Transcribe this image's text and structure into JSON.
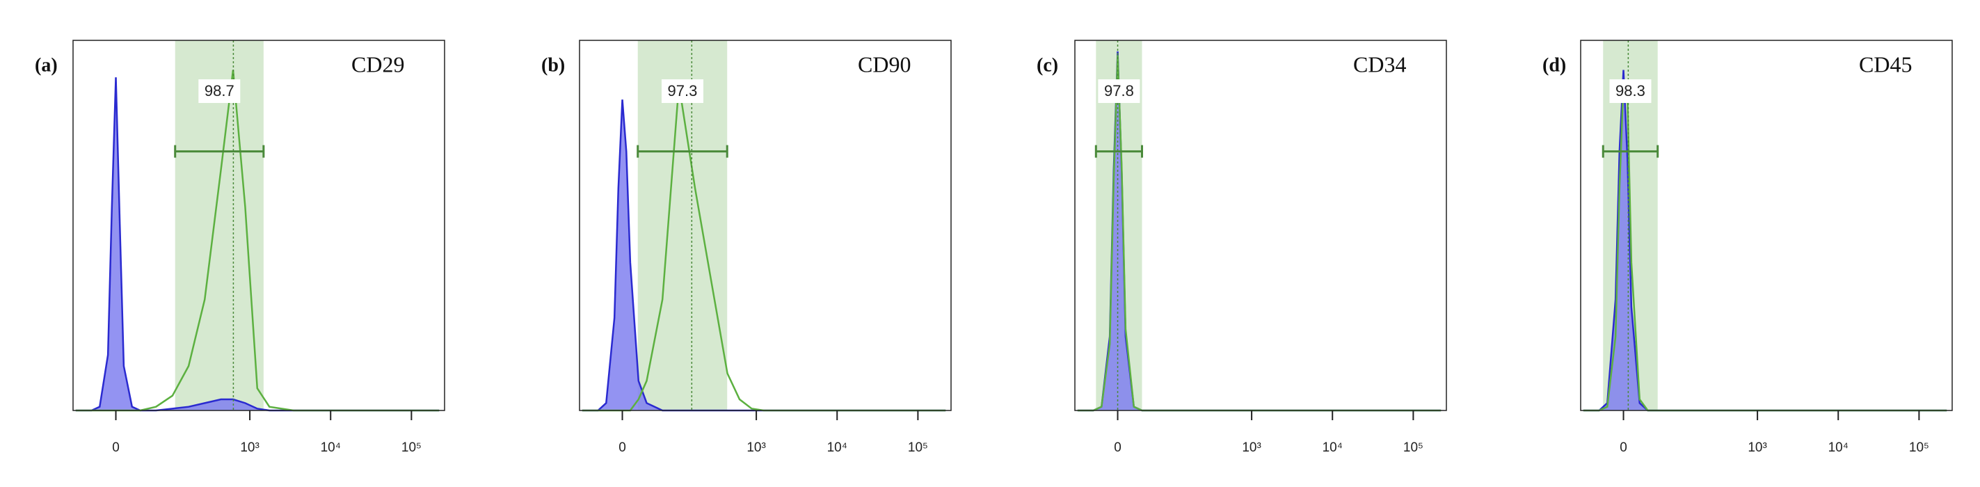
{
  "chart_data": [
    {
      "type": "density",
      "panel_label": "(a)",
      "title": "CD29",
      "xscale": "arcsinh",
      "xlim": [
        -68,
        257000
      ],
      "xticks": [
        0,
        {
          "value": 1000,
          "label": "10³"
        },
        {
          "value": 10000,
          "label": "10⁴"
        },
        {
          "value": 100000,
          "label": "10⁵"
        }
      ],
      "ylim": [
        0,
        100
      ],
      "gate": {
        "range": [
          115,
          1480
        ],
        "median": 625,
        "percent": 98.7
      },
      "x": [
        -62,
        -33,
        -21,
        -10,
        -5,
        0,
        5,
        10,
        21,
        33,
        62,
        106,
        172,
        275,
        438,
        620,
        876,
        1236,
        1747,
        3489,
        22000,
        220000
      ],
      "series": [
        {
          "color": "#2a2ad0",
          "fill": "#8080f0",
          "values": [
            0,
            0,
            1,
            15,
            55,
            90,
            50,
            12,
            1,
            0,
            0,
            0.5,
            1,
            2,
            3,
            3,
            2,
            0.5,
            0,
            0,
            0,
            0
          ]
        },
        {
          "color": "#5cb040",
          "values": [
            0,
            0,
            0,
            0,
            0,
            0,
            0,
            0,
            0,
            0,
            1,
            4,
            12,
            30,
            65,
            92,
            55,
            6,
            1,
            0,
            0,
            0
          ]
        }
      ]
    },
    {
      "type": "density",
      "panel_label": "(b)",
      "title": "CD90",
      "xscale": "arcsinh",
      "xlim": [
        -68,
        257000
      ],
      "xticks": [
        0,
        {
          "value": 1000,
          "label": "10³"
        },
        {
          "value": 10000,
          "label": "10⁴"
        },
        {
          "value": 100000,
          "label": "10⁵"
        }
      ],
      "ylim": [
        0,
        100
      ],
      "gate": {
        "range": [
          20,
          435
        ],
        "median": 156,
        "percent": 97.3
      },
      "x": [
        -62,
        -33,
        -21,
        -10,
        -5,
        0,
        5,
        10,
        21,
        33,
        62,
        106,
        172,
        275,
        438,
        620,
        876,
        1236,
        1747,
        3489,
        22000,
        220000
      ],
      "series": [
        {
          "color": "#2a2ad0",
          "fill": "#8080f0",
          "values": [
            0,
            0,
            2,
            25,
            60,
            84,
            70,
            40,
            8,
            2,
            0,
            0,
            0,
            0,
            0,
            0,
            0,
            0,
            0,
            0,
            0,
            0
          ]
        },
        {
          "color": "#5cb040",
          "values": [
            0,
            0,
            0,
            0,
            0,
            0,
            0,
            0,
            3,
            8,
            30,
            88,
            60,
            35,
            10,
            3,
            0.5,
            0,
            0,
            0,
            0,
            0
          ]
        }
      ]
    },
    {
      "type": "density",
      "panel_label": "(c)",
      "title": "CD34",
      "xscale": "arcsinh",
      "xlim": [
        -68,
        257000
      ],
      "xticks": [
        0,
        {
          "value": 1000,
          "label": "10³"
        },
        {
          "value": 10000,
          "label": "10⁴"
        },
        {
          "value": 100000,
          "label": "10⁵"
        }
      ],
      "ylim": [
        0,
        100
      ],
      "gate": {
        "range": [
          -29,
          33
        ],
        "median": 0,
        "percent": 97.8
      },
      "x": [
        -62,
        -33,
        -21,
        -10,
        -5,
        0,
        5,
        10,
        21,
        33,
        62,
        106,
        172,
        275,
        438,
        620,
        876,
        1236,
        1747,
        3489,
        22000,
        220000
      ],
      "series": [
        {
          "color": "#2a2ad0",
          "fill": "#8080f0",
          "values": [
            0,
            0,
            1,
            20,
            65,
            97,
            65,
            20,
            1,
            0,
            0,
            0,
            0,
            0,
            0,
            0,
            0,
            0,
            0,
            0,
            0,
            0
          ]
        },
        {
          "color": "#5cb040",
          "values": [
            0,
            0,
            1,
            18,
            62,
            96,
            66,
            22,
            1,
            0,
            0,
            0,
            0,
            0,
            0,
            0,
            0,
            0,
            0,
            0,
            0,
            0
          ]
        }
      ]
    },
    {
      "type": "density",
      "panel_label": "(d)",
      "title": "CD45",
      "xscale": "arcsinh",
      "xlim": [
        -68,
        257000
      ],
      "xticks": [
        0,
        {
          "value": 1000,
          "label": "10³"
        },
        {
          "value": 10000,
          "label": "10⁴"
        },
        {
          "value": 100000,
          "label": "10⁵"
        }
      ],
      "ylim": [
        0,
        100
      ],
      "gate": {
        "range": [
          -27,
          50
        ],
        "median": 6,
        "percent": 98.3
      },
      "x": [
        -62,
        -33,
        -21,
        -10,
        -5,
        0,
        5,
        10,
        21,
        33,
        62,
        106,
        172,
        275,
        438,
        620,
        876,
        1236,
        1747,
        3489,
        22000,
        220000
      ],
      "series": [
        {
          "color": "#2a2ad0",
          "fill": "#8080f0",
          "values": [
            0,
            0,
            2,
            30,
            70,
            92,
            68,
            28,
            2,
            0,
            0,
            0,
            0,
            0,
            0,
            0,
            0,
            0,
            0,
            0,
            0,
            0
          ]
        },
        {
          "color": "#5cb040",
          "values": [
            0,
            0,
            1,
            20,
            60,
            88,
            85,
            40,
            3,
            0,
            0,
            0,
            0,
            0,
            0,
            0,
            0,
            0,
            0,
            0,
            0,
            0
          ]
        }
      ]
    }
  ]
}
